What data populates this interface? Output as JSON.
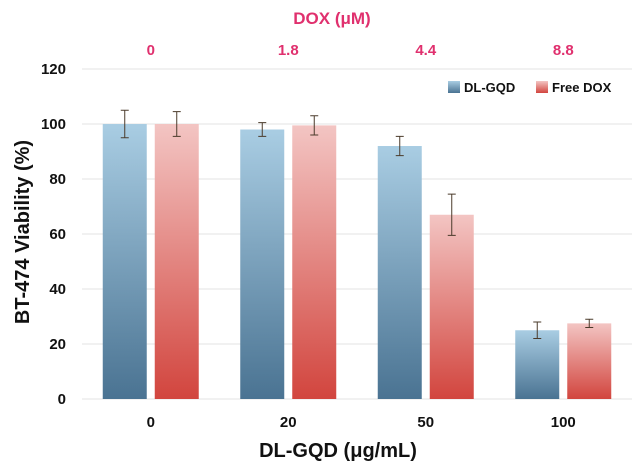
{
  "chart_data": {
    "type": "bar",
    "xlabel": "DL-GQD (μg/mL)",
    "ylabel": "BT-474 Viability (%)",
    "categories": [
      "0",
      "20",
      "50",
      "100"
    ],
    "top_axis": {
      "label": "DOX (μM)",
      "ticks": [
        "0",
        "1.8",
        "4.4",
        "8.8"
      ],
      "color": "#e0306e"
    },
    "ylim": [
      0,
      120
    ],
    "yticks": [
      "0",
      "20",
      "40",
      "60",
      "80",
      "100",
      "120"
    ],
    "grid": true,
    "legend_position": "top-right",
    "series": [
      {
        "name": "DL-GQD",
        "values": [
          100,
          98,
          92,
          25
        ],
        "errors": [
          5,
          2.5,
          3.5,
          3
        ],
        "color_top": "#a9cde3",
        "color_bottom": "#4a7392"
      },
      {
        "name": "Free DOX",
        "values": [
          100,
          99.5,
          67,
          27.5
        ],
        "errors": [
          4.5,
          3.5,
          7.5,
          1.5
        ],
        "color_top": "#f3c5c3",
        "color_bottom": "#d2453e"
      }
    ]
  }
}
